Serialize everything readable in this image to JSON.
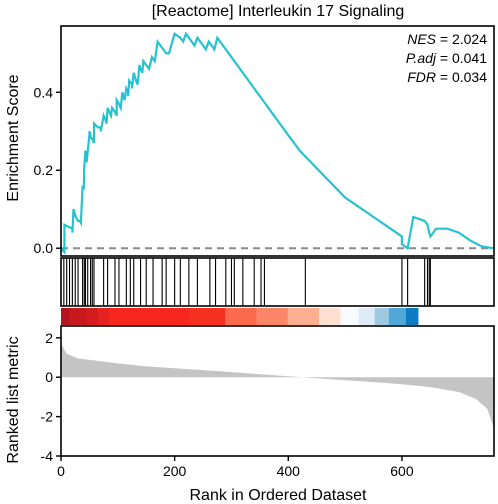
{
  "chart_data": {
    "type": "line",
    "title": "[Reactome] Interleukin 17 Signaling",
    "xlabel": "Rank in Ordered Dataset",
    "stats": [
      {
        "name": "NES",
        "value": "2.024"
      },
      {
        "name": "P.adj",
        "value": "0.041"
      },
      {
        "name": "FDR",
        "value": "0.034"
      }
    ],
    "xlim": [
      0,
      762
    ],
    "x_ticks": [
      0,
      200,
      400,
      600
    ],
    "enrichment": {
      "ylabel": "Enrichment Score",
      "ylim": [
        -0.02,
        0.57
      ],
      "y_ticks": [
        "0.0",
        "0.2",
        "0.4"
      ],
      "baseline": 0,
      "x": [
        0,
        3,
        6,
        6,
        20,
        20,
        22,
        24,
        26,
        30,
        33,
        35,
        38,
        40,
        41,
        43,
        45,
        50,
        50,
        52,
        52,
        55,
        55,
        58,
        58,
        65,
        70,
        70,
        75,
        78,
        80,
        82,
        85,
        88,
        90,
        95,
        98,
        98,
        102,
        105,
        108,
        110,
        112,
        115,
        118,
        118,
        120,
        125,
        125,
        128,
        130,
        132,
        135,
        138,
        140,
        143,
        145,
        150,
        155,
        160,
        165,
        170,
        175,
        180,
        185,
        190,
        200,
        210,
        215,
        220,
        225,
        230,
        235,
        240,
        245,
        250,
        255,
        260,
        265,
        270,
        275,
        280,
        285,
        290,
        295,
        300,
        305,
        310,
        315,
        320,
        325,
        330,
        335,
        340,
        345,
        350,
        355,
        360,
        370,
        380,
        390,
        400,
        420,
        440,
        460,
        480,
        500,
        520,
        540,
        560,
        580,
        600,
        600,
        610,
        620,
        640,
        645,
        648,
        650,
        660,
        680,
        700,
        720,
        740,
        760
      ],
      "y": [
        0,
        -0.005,
        -0.01,
        0.06,
        0.05,
        0.04,
        0.1,
        0.09,
        0.08,
        0.07,
        0.07,
        0.065,
        0.16,
        0.15,
        0.21,
        0.25,
        0.22,
        0.29,
        0.3,
        0.29,
        0.285,
        0.28,
        0.28,
        0.27,
        0.32,
        0.31,
        0.31,
        0.3,
        0.34,
        0.33,
        0.32,
        0.36,
        0.35,
        0.34,
        0.36,
        0.35,
        0.34,
        0.38,
        0.37,
        0.36,
        0.4,
        0.39,
        0.38,
        0.41,
        0.4,
        0.39,
        0.43,
        0.42,
        0.41,
        0.45,
        0.44,
        0.43,
        0.42,
        0.47,
        0.46,
        0.45,
        0.48,
        0.47,
        0.46,
        0.49,
        0.48,
        0.53,
        0.52,
        0.51,
        0.5,
        0.5,
        0.55,
        0.54,
        0.53,
        0.55,
        0.54,
        0.53,
        0.52,
        0.54,
        0.53,
        0.52,
        0.51,
        0.53,
        0.52,
        0.51,
        0.54,
        0.53,
        0.52,
        0.51,
        0.5,
        0.49,
        0.48,
        0.47,
        0.46,
        0.45,
        0.44,
        0.43,
        0.42,
        0.41,
        0.4,
        0.39,
        0.38,
        0.37,
        0.35,
        0.33,
        0.31,
        0.29,
        0.25,
        0.22,
        0.19,
        0.16,
        0.13,
        0.11,
        0.09,
        0.07,
        0.05,
        0.03,
        0.01,
        0.0,
        0.08,
        0.07,
        0.06,
        0.04,
        0.03,
        0.05,
        0.05,
        0.04,
        0.02,
        0.005,
        0.0
      ]
    },
    "hits": {
      "positions": [
        5,
        10,
        15,
        20,
        25,
        30,
        38,
        41,
        43,
        47,
        52,
        55,
        58,
        75,
        82,
        95,
        102,
        115,
        122,
        128,
        140,
        150,
        162,
        178,
        185,
        200,
        210,
        225,
        240,
        262,
        272,
        290,
        300,
        305,
        320,
        340,
        352,
        358,
        430,
        600,
        610,
        640,
        645,
        648,
        650
      ]
    },
    "color_band": {
      "colors": [
        "#b2151e",
        "#c8191f",
        "#d41c1f",
        "#e52220",
        "#f7261f",
        "#f5301f",
        "#fb6a4a",
        "#fb8667",
        "#fcae91",
        "#fee0d2",
        "#f7fbff",
        "#deebf7",
        "#9ecae1",
        "#4fa8d8",
        "#0f7bc0"
      ],
      "values": [
        15,
        30,
        20,
        20,
        140,
        64,
        55,
        55,
        55,
        38,
        32,
        28,
        25,
        30,
        21
      ]
    },
    "ranked_metric": {
      "ylabel": "Ranked list metric",
      "ylim": [
        -4,
        2.6
      ],
      "y_ticks": [
        "2",
        "0",
        "-2",
        "-4"
      ],
      "y_tick_values": [
        2,
        0,
        -2,
        -4
      ],
      "x": [
        0,
        10,
        30,
        60,
        100,
        150,
        200,
        250,
        300,
        350,
        400,
        450,
        500,
        550,
        600,
        650,
        700,
        730,
        750,
        762
      ],
      "values": [
        1.7,
        1.2,
        0.95,
        0.85,
        0.7,
        0.55,
        0.45,
        0.36,
        0.26,
        0.15,
        0.05,
        -0.05,
        -0.15,
        -0.25,
        -0.36,
        -0.5,
        -0.75,
        -1.1,
        -1.6,
        -2.6
      ]
    },
    "colors": {
      "enrichment_line": "#27c2cf",
      "baseline": "#8c8c8c",
      "metric_fill": "#c4c4c4",
      "hit_line": "#000000",
      "frame": "#000000",
      "text": "#000000"
    }
  }
}
